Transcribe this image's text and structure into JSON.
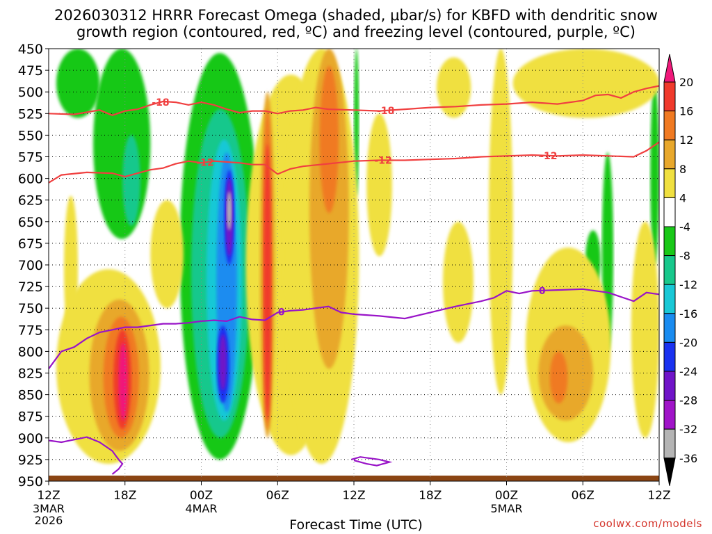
{
  "chart_data": {
    "type": "heatmap",
    "title_line1": "2026030312 HRRR Forecast Omega (shaded, μbar/s) for KBFD with dendritic snow",
    "title_line2": "growth region (contoured, red, ºC) and freezing level (contoured, purple, ºC)",
    "xlabel": "Forecast Time (UTC)",
    "ylabel": "",
    "y_ticks": [
      "450",
      "475",
      "500",
      "525",
      "550",
      "575",
      "600",
      "625",
      "650",
      "675",
      "700",
      "725",
      "750",
      "775",
      "800",
      "825",
      "850",
      "875",
      "900",
      "925",
      "950"
    ],
    "ylim": [
      450,
      950
    ],
    "x_ticks": [
      {
        "hour": 0,
        "label": "12Z",
        "sub1": "3MAR",
        "sub2": "2026"
      },
      {
        "hour": 6,
        "label": "18Z",
        "sub1": "",
        "sub2": ""
      },
      {
        "hour": 12,
        "label": "00Z",
        "sub1": "4MAR",
        "sub2": ""
      },
      {
        "hour": 18,
        "label": "06Z",
        "sub1": "",
        "sub2": ""
      },
      {
        "hour": 24,
        "label": "12Z",
        "sub1": "",
        "sub2": ""
      },
      {
        "hour": 30,
        "label": "18Z",
        "sub1": "",
        "sub2": ""
      },
      {
        "hour": 36,
        "label": "00Z",
        "sub1": "5MAR",
        "sub2": ""
      },
      {
        "hour": 42,
        "label": "06Z",
        "sub1": "",
        "sub2": ""
      },
      {
        "hour": 48,
        "label": "12Z",
        "sub1": "",
        "sub2": ""
      }
    ],
    "xlim": [
      0,
      48
    ],
    "colorbar": {
      "labels": [
        "20",
        "16",
        "12",
        "8",
        "4",
        "-4",
        "-8",
        "-12",
        "-16",
        "-20",
        "-24",
        "-28",
        "-32",
        "-36"
      ],
      "colors": [
        "#f0187a",
        "#f03a2c",
        "#f07a22",
        "#e8a82c",
        "#f0e040",
        "#ffffff",
        "#19c818",
        "#18c88c",
        "#19c8d6",
        "#1a8cf0",
        "#1a32f0",
        "#7014c8",
        "#a014c8",
        "#b4b4b4"
      ]
    },
    "series": [
      {
        "name": "-18",
        "color": "#f04040",
        "label_at_hour": [
          8.8,
          26.5
        ],
        "points": [
          [
            0,
            525
          ],
          [
            2,
            526
          ],
          [
            4,
            521
          ],
          [
            5,
            527
          ],
          [
            6,
            522
          ],
          [
            7,
            520
          ],
          [
            8,
            515
          ],
          [
            9,
            511
          ],
          [
            10,
            512
          ],
          [
            11,
            515
          ],
          [
            12,
            512
          ],
          [
            13,
            515
          ],
          [
            14,
            520
          ],
          [
            15,
            524
          ],
          [
            16,
            522
          ],
          [
            17,
            522
          ],
          [
            18,
            525
          ],
          [
            19,
            522
          ],
          [
            20,
            521
          ],
          [
            21,
            518
          ],
          [
            22,
            520
          ],
          [
            24,
            521
          ],
          [
            26,
            522
          ],
          [
            28,
            520
          ],
          [
            30,
            518
          ],
          [
            32,
            517
          ],
          [
            34,
            515
          ],
          [
            36,
            514
          ],
          [
            38,
            512
          ],
          [
            40,
            514
          ],
          [
            42,
            510
          ],
          [
            43,
            504
          ],
          [
            44,
            503
          ],
          [
            45,
            507
          ],
          [
            46,
            500
          ],
          [
            47,
            496
          ],
          [
            48,
            493
          ]
        ]
      },
      {
        "name": "-12",
        "color": "#f04040",
        "label_at_hour": [
          12.3,
          26.3,
          39.3
        ],
        "points": [
          [
            0,
            605
          ],
          [
            1,
            596
          ],
          [
            3,
            593
          ],
          [
            5,
            594
          ],
          [
            6,
            598
          ],
          [
            7,
            594
          ],
          [
            8,
            590
          ],
          [
            9,
            588
          ],
          [
            10,
            583
          ],
          [
            11,
            580
          ],
          [
            12,
            582
          ],
          [
            13,
            580
          ],
          [
            15,
            582
          ],
          [
            16,
            584
          ],
          [
            17,
            584
          ],
          [
            18,
            595
          ],
          [
            19,
            589
          ],
          [
            20,
            586
          ],
          [
            22,
            583
          ],
          [
            24,
            580
          ],
          [
            26,
            579
          ],
          [
            28,
            579
          ],
          [
            30,
            578
          ],
          [
            32,
            577
          ],
          [
            34,
            575
          ],
          [
            36,
            574
          ],
          [
            38,
            573
          ],
          [
            40,
            574
          ],
          [
            42,
            573
          ],
          [
            44,
            574
          ],
          [
            46,
            575
          ],
          [
            47,
            568
          ],
          [
            48,
            558
          ]
        ]
      },
      {
        "name": "0",
        "color": "#9914c8",
        "label_at_hour": [
          18.3,
          38.8
        ],
        "points": [
          [
            0,
            820
          ],
          [
            1,
            800
          ],
          [
            2,
            795
          ],
          [
            3,
            785
          ],
          [
            4,
            778
          ],
          [
            5,
            775
          ],
          [
            6,
            772
          ],
          [
            7,
            772
          ],
          [
            8,
            770
          ],
          [
            9,
            768
          ],
          [
            10,
            768
          ],
          [
            11,
            767
          ],
          [
            12,
            765
          ],
          [
            13,
            764
          ],
          [
            14,
            765
          ],
          [
            15,
            760
          ],
          [
            16,
            763
          ],
          [
            17,
            764
          ],
          [
            18,
            755
          ],
          [
            19,
            753
          ],
          [
            20,
            752
          ],
          [
            21,
            750
          ],
          [
            22,
            748
          ],
          [
            23,
            755
          ],
          [
            24,
            757
          ],
          [
            26,
            759
          ],
          [
            28,
            762
          ],
          [
            30,
            755
          ],
          [
            32,
            748
          ],
          [
            34,
            742
          ],
          [
            35,
            738
          ],
          [
            36,
            730
          ],
          [
            37,
            733
          ],
          [
            38,
            730
          ],
          [
            40,
            729
          ],
          [
            42,
            728
          ],
          [
            43,
            730
          ],
          [
            44,
            732
          ],
          [
            45,
            737
          ],
          [
            46,
            742
          ],
          [
            47,
            732
          ],
          [
            48,
            734
          ]
        ]
      },
      {
        "name": "0-low",
        "color": "#9914c8",
        "points": [
          [
            0,
            903
          ],
          [
            1,
            905
          ],
          [
            2,
            902
          ],
          [
            3,
            899
          ],
          [
            4,
            905
          ],
          [
            5,
            915
          ],
          [
            5.5,
            925
          ],
          [
            5.8,
            930
          ],
          [
            5.5,
            936
          ],
          [
            5,
            942
          ]
        ]
      },
      {
        "name": "0-blob",
        "color": "#9914c8",
        "points": [
          [
            23.8,
            925
          ],
          [
            24.5,
            922
          ],
          [
            26,
            925
          ],
          [
            26.8,
            928
          ],
          [
            25.8,
            932
          ],
          [
            25,
            930
          ],
          [
            24,
            926
          ]
        ]
      }
    ],
    "omega_cells": [
      {
        "cls": -8,
        "h0": 0.6,
        "h1": 4.0,
        "p0": 450,
        "p1": 530
      },
      {
        "cls": -8,
        "h0": 3.5,
        "h1": 8.0,
        "p0": 450,
        "p1": 670
      },
      {
        "cls": -12,
        "h0": 5.8,
        "h1": 7.2,
        "p0": 550,
        "p1": 655
      },
      {
        "cls": -8,
        "h0": 10.3,
        "h1": 16.6,
        "p0": 455,
        "p1": 925
      },
      {
        "cls": -12,
        "h0": 11.2,
        "h1": 15.8,
        "p0": 520,
        "p1": 900
      },
      {
        "cls": -16,
        "h0": 12.4,
        "h1": 15.2,
        "p0": 555,
        "p1": 880
      },
      {
        "cls": -20,
        "h0": 13.2,
        "h1": 14.8,
        "p0": 570,
        "p1": 870
      },
      {
        "cls": -24,
        "h0": 13.8,
        "h1": 14.6,
        "p0": 590,
        "p1": 700
      },
      {
        "cls": -28,
        "h0": 13.9,
        "h1": 14.5,
        "p0": 600,
        "p1": 690
      },
      {
        "cls": -32,
        "h0": 14.0,
        "h1": 14.4,
        "p0": 615,
        "p1": 660
      },
      {
        "cls": -24,
        "h0": 13.2,
        "h1": 14.2,
        "p0": 770,
        "p1": 860
      },
      {
        "cls": -28,
        "h0": 13.4,
        "h1": 14.0,
        "p0": 780,
        "p1": 845
      },
      {
        "cls": -8,
        "h0": 24.0,
        "h1": 24.4,
        "p0": 450,
        "p1": 620
      },
      {
        "cls": -8,
        "h0": 35.3,
        "h1": 35.7,
        "p0": 565,
        "p1": 700
      },
      {
        "cls": -8,
        "h0": 42.2,
        "h1": 43.4,
        "p0": 660,
        "p1": 730
      },
      {
        "cls": -8,
        "h0": 43.5,
        "h1": 44.4,
        "p0": 570,
        "p1": 800
      },
      {
        "cls": -8,
        "h0": 47.3,
        "h1": 48.0,
        "p0": 490,
        "p1": 700
      },
      {
        "cls": 4,
        "h0": 1.2,
        "h1": 2.3,
        "p0": 620,
        "p1": 790
      },
      {
        "cls": 4,
        "h0": 0.6,
        "h1": 8.8,
        "p0": 705,
        "p1": 930
      },
      {
        "cls": 8,
        "h0": 3.2,
        "h1": 7.9,
        "p0": 740,
        "p1": 915
      },
      {
        "cls": 12,
        "h0": 4.3,
        "h1": 7.1,
        "p0": 760,
        "p1": 900
      },
      {
        "cls": 16,
        "h0": 5.1,
        "h1": 6.5,
        "p0": 775,
        "p1": 890
      },
      {
        "cls": 20,
        "h0": 5.5,
        "h1": 6.2,
        "p0": 790,
        "p1": 880
      },
      {
        "cls": 4,
        "h0": 8.0,
        "h1": 10.6,
        "p0": 625,
        "p1": 750
      },
      {
        "cls": 4,
        "h0": 15.5,
        "h1": 22.6,
        "p0": 480,
        "p1": 920
      },
      {
        "cls": 4,
        "h0": 18.5,
        "h1": 24.4,
        "p0": 450,
        "p1": 930
      },
      {
        "cls": 8,
        "h0": 16.6,
        "h1": 17.8,
        "p0": 500,
        "p1": 900
      },
      {
        "cls": 12,
        "h0": 16.8,
        "h1": 17.6,
        "p0": 520,
        "p1": 890
      },
      {
        "cls": 16,
        "h0": 16.9,
        "h1": 17.5,
        "p0": 560,
        "p1": 880
      },
      {
        "cls": 8,
        "h0": 20.5,
        "h1": 23.6,
        "p0": 450,
        "p1": 820
      },
      {
        "cls": 12,
        "h0": 21.3,
        "h1": 22.8,
        "p0": 470,
        "p1": 640
      },
      {
        "cls": 4,
        "h0": 25.0,
        "h1": 27.0,
        "p0": 525,
        "p1": 690
      },
      {
        "cls": 4,
        "h0": 30.5,
        "h1": 33.2,
        "p0": 460,
        "p1": 530
      },
      {
        "cls": 4,
        "h0": 31.0,
        "h1": 33.4,
        "p0": 650,
        "p1": 790
      },
      {
        "cls": 4,
        "h0": 34.6,
        "h1": 36.5,
        "p0": 450,
        "p1": 850
      },
      {
        "cls": 4,
        "h0": 36.5,
        "h1": 48.0,
        "p0": 450,
        "p1": 530
      },
      {
        "cls": 4,
        "h0": 37.5,
        "h1": 44.2,
        "p0": 680,
        "p1": 905
      },
      {
        "cls": 8,
        "h0": 38.5,
        "h1": 42.8,
        "p0": 770,
        "p1": 880
      },
      {
        "cls": 12,
        "h0": 39.4,
        "h1": 40.8,
        "p0": 800,
        "p1": 860
      },
      {
        "cls": 4,
        "h0": 45.8,
        "h1": 48.0,
        "p0": 650,
        "p1": 900
      }
    ]
  },
  "footer": {
    "credit": "coolwx.com/models",
    "xlabel": "Forecast Time (UTC)"
  }
}
